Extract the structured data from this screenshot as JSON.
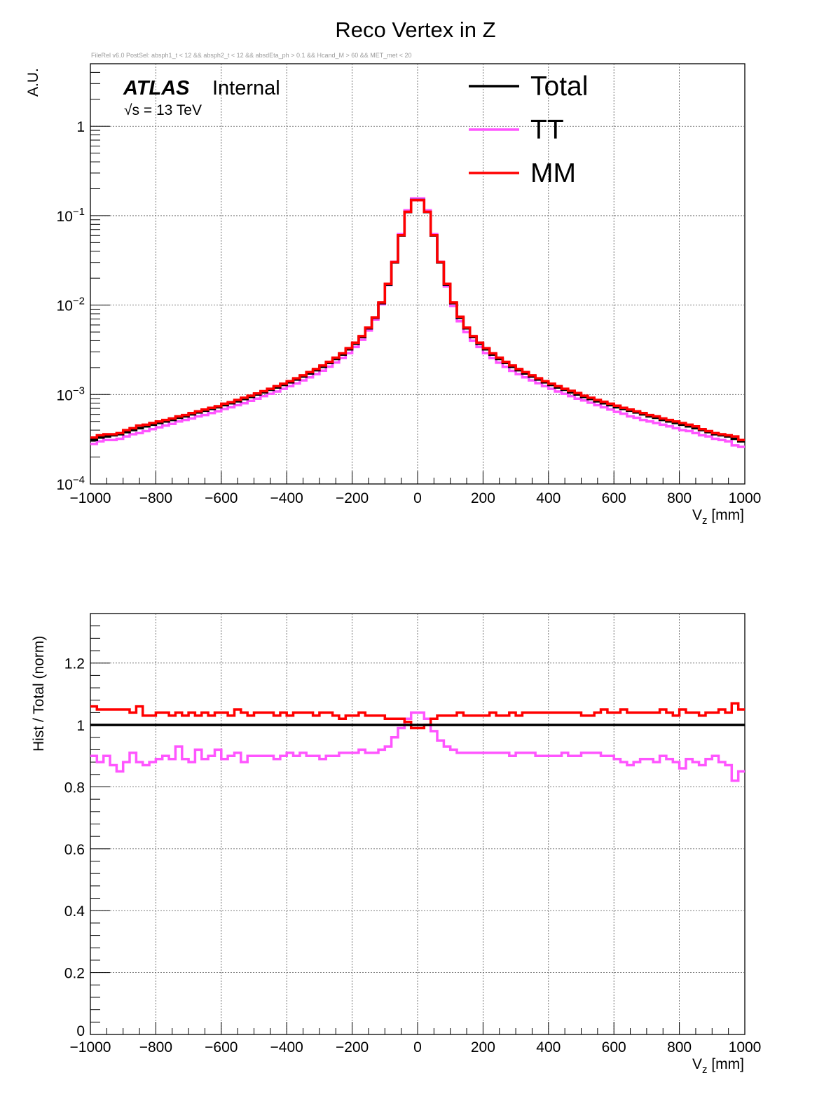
{
  "title": "Reco Vertex in Z",
  "selection_text": "FileRel v6.0 PostSel:  absph1_t < 12 && absph2_t < 12 && absdEta_ph > 0.1 && Hcand_M > 60 && MET_met < 20",
  "atlas_label": {
    "experiment": "ATLAS",
    "status": "Internal",
    "energy_prefix": "√s = 13 TeV"
  },
  "colors": {
    "Total": "#000000",
    "TT": "#ff55ff",
    "MM": "#ff0000"
  },
  "chart_data": [
    {
      "type": "line",
      "subtype": "step-histogram",
      "x": [
        -990,
        -970,
        -950,
        -930,
        -910,
        -890,
        -870,
        -850,
        -830,
        -810,
        -790,
        -770,
        -750,
        -730,
        -710,
        -690,
        -670,
        -650,
        -630,
        -610,
        -590,
        -570,
        -550,
        -530,
        -510,
        -490,
        -470,
        -450,
        -430,
        -410,
        -390,
        -370,
        -350,
        -330,
        -310,
        -290,
        -270,
        -250,
        -230,
        -210,
        -190,
        -170,
        -150,
        -130,
        -110,
        -90,
        -70,
        -50,
        -30,
        -10,
        10,
        30,
        50,
        70,
        90,
        110,
        130,
        150,
        170,
        190,
        210,
        230,
        250,
        270,
        290,
        310,
        330,
        350,
        370,
        390,
        410,
        430,
        450,
        470,
        490,
        510,
        530,
        550,
        570,
        590,
        610,
        630,
        650,
        670,
        690,
        710,
        730,
        750,
        770,
        790,
        810,
        830,
        850,
        870,
        890,
        910,
        930,
        950,
        970,
        990
      ],
      "bin_width": 20,
      "series": [
        {
          "name": "Total",
          "values": [
            0.00031,
            0.00033,
            0.00034,
            0.00035,
            0.00036,
            0.00038,
            0.0004,
            0.00042,
            0.00044,
            0.00046,
            0.00048,
            0.0005,
            0.00052,
            0.00055,
            0.00057,
            0.0006,
            0.00063,
            0.00066,
            0.00069,
            0.00072,
            0.00076,
            0.0008,
            0.00084,
            0.00089,
            0.00094,
            0.001,
            0.00106,
            0.00113,
            0.0012,
            0.00128,
            0.00137,
            0.00147,
            0.00159,
            0.00172,
            0.00187,
            0.00204,
            0.00225,
            0.0025,
            0.0028,
            0.0032,
            0.0037,
            0.0044,
            0.0055,
            0.0072,
            0.0105,
            0.017,
            0.03,
            0.06,
            0.11,
            0.15,
            0.15,
            0.11,
            0.06,
            0.03,
            0.017,
            0.0105,
            0.0072,
            0.0055,
            0.0044,
            0.0037,
            0.0032,
            0.0028,
            0.0025,
            0.00225,
            0.00204,
            0.00187,
            0.00172,
            0.00159,
            0.00147,
            0.00137,
            0.00128,
            0.0012,
            0.00113,
            0.00106,
            0.001,
            0.00094,
            0.00089,
            0.00084,
            0.0008,
            0.00076,
            0.00072,
            0.00069,
            0.00066,
            0.00063,
            0.0006,
            0.00057,
            0.00055,
            0.00052,
            0.0005,
            0.00048,
            0.00046,
            0.00044,
            0.00042,
            0.0004,
            0.00038,
            0.00036,
            0.00035,
            0.00034,
            0.00032,
            0.0003
          ]
        },
        {
          "name": "TT",
          "values": [
            0.00028,
            0.0003,
            0.00031,
            0.00031,
            0.00032,
            0.00034,
            0.00036,
            0.00037,
            0.00039,
            0.00041,
            0.00043,
            0.00045,
            0.00047,
            0.0005,
            0.00052,
            0.00054,
            0.00057,
            0.00059,
            0.00062,
            0.00065,
            0.00069,
            0.00072,
            0.00076,
            0.0008,
            0.00085,
            0.0009,
            0.00096,
            0.00102,
            0.00108,
            0.00116,
            0.00124,
            0.00133,
            0.00144,
            0.00156,
            0.00169,
            0.00185,
            0.00205,
            0.00228,
            0.00256,
            0.0029,
            0.0034,
            0.0041,
            0.0052,
            0.0069,
            0.0102,
            0.0168,
            0.0305,
            0.062,
            0.115,
            0.156,
            0.156,
            0.115,
            0.062,
            0.0305,
            0.0162,
            0.0098,
            0.0066,
            0.005,
            0.004,
            0.0034,
            0.0029,
            0.00255,
            0.00227,
            0.00204,
            0.00184,
            0.00169,
            0.00156,
            0.00144,
            0.00134,
            0.00124,
            0.00116,
            0.00108,
            0.00102,
            0.00096,
            0.0009,
            0.00086,
            0.00081,
            0.00076,
            0.00072,
            0.00068,
            0.00064,
            0.00061,
            0.00057,
            0.00055,
            0.00052,
            0.0005,
            0.00048,
            0.00046,
            0.00044,
            0.00042,
            0.0004,
            0.00039,
            0.00037,
            0.00035,
            0.00034,
            0.00032,
            0.00031,
            0.0003,
            0.00027,
            0.00026
          ]
        },
        {
          "name": "MM",
          "values": [
            0.00033,
            0.00035,
            0.00036,
            0.00036,
            0.00037,
            0.0004,
            0.00042,
            0.00045,
            0.00046,
            0.00048,
            0.0005,
            0.00052,
            0.00054,
            0.00057,
            0.00059,
            0.00062,
            0.00065,
            0.00068,
            0.00071,
            0.00074,
            0.00079,
            0.00082,
            0.00087,
            0.00092,
            0.00097,
            0.00103,
            0.00109,
            0.00116,
            0.00124,
            0.00132,
            0.00141,
            0.00152,
            0.00164,
            0.00178,
            0.00193,
            0.00211,
            0.00232,
            0.00258,
            0.00289,
            0.0033,
            0.0038,
            0.0045,
            0.0056,
            0.0073,
            0.0107,
            0.0173,
            0.0303,
            0.0605,
            0.1105,
            0.149,
            0.149,
            0.1105,
            0.0605,
            0.0303,
            0.0173,
            0.0107,
            0.0074,
            0.0056,
            0.0045,
            0.0038,
            0.0033,
            0.00289,
            0.00258,
            0.00232,
            0.00211,
            0.00193,
            0.00178,
            0.00164,
            0.00152,
            0.00141,
            0.00132,
            0.00124,
            0.00116,
            0.0011,
            0.00104,
            0.00097,
            0.00092,
            0.00087,
            0.00083,
            0.00079,
            0.00075,
            0.00071,
            0.00068,
            0.00065,
            0.00062,
            0.00059,
            0.00057,
            0.00054,
            0.00052,
            0.0005,
            0.00048,
            0.00046,
            0.00044,
            0.00041,
            0.00039,
            0.00037,
            0.00036,
            0.00035,
            0.00034,
            0.00031
          ]
        }
      ],
      "xlabel": "V_z [mm]",
      "ylabel": "A.U.",
      "xlim": [
        -1000,
        1000
      ],
      "ylim": [
        0.0001,
        5
      ],
      "yscale": "log",
      "x_ticks": [
        "−1000",
        "−800",
        "−600",
        "−400",
        "−200",
        "0",
        "200",
        "400",
        "600",
        "800",
        "1000"
      ],
      "y_ticks": [
        "10^-4",
        "10^-3",
        "10^-2",
        "10^-1",
        "1"
      ],
      "grid": true,
      "legend_position": "top-right"
    },
    {
      "type": "line",
      "subtype": "step-histogram",
      "x": [
        -990,
        -970,
        -950,
        -930,
        -910,
        -890,
        -870,
        -850,
        -830,
        -810,
        -790,
        -770,
        -750,
        -730,
        -710,
        -690,
        -670,
        -650,
        -630,
        -610,
        -590,
        -570,
        -550,
        -530,
        -510,
        -490,
        -470,
        -450,
        -430,
        -410,
        -390,
        -370,
        -350,
        -330,
        -310,
        -290,
        -270,
        -250,
        -230,
        -210,
        -190,
        -170,
        -150,
        -130,
        -110,
        -90,
        -70,
        -50,
        -30,
        -10,
        10,
        30,
        50,
        70,
        90,
        110,
        130,
        150,
        170,
        190,
        210,
        230,
        250,
        270,
        290,
        310,
        330,
        350,
        370,
        390,
        410,
        430,
        450,
        470,
        490,
        510,
        530,
        550,
        570,
        590,
        610,
        630,
        650,
        670,
        690,
        710,
        730,
        750,
        770,
        790,
        810,
        830,
        850,
        870,
        890,
        910,
        930,
        950,
        970,
        990
      ],
      "bin_width": 20,
      "series": [
        {
          "name": "Total",
          "values": [
            1,
            1,
            1,
            1,
            1,
            1,
            1,
            1,
            1,
            1,
            1,
            1,
            1,
            1,
            1,
            1,
            1,
            1,
            1,
            1,
            1,
            1,
            1,
            1,
            1,
            1,
            1,
            1,
            1,
            1,
            1,
            1,
            1,
            1,
            1,
            1,
            1,
            1,
            1,
            1,
            1,
            1,
            1,
            1,
            1,
            1,
            1,
            1,
            1,
            1,
            1,
            1,
            1,
            1,
            1,
            1,
            1,
            1,
            1,
            1,
            1,
            1,
            1,
            1,
            1,
            1,
            1,
            1,
            1,
            1,
            1,
            1,
            1,
            1,
            1,
            1,
            1,
            1,
            1,
            1,
            1,
            1,
            1,
            1,
            1,
            1,
            1,
            1,
            1,
            1,
            1,
            1,
            1,
            1,
            1,
            1,
            1,
            1,
            1,
            1
          ]
        },
        {
          "name": "TT",
          "values": [
            0.9,
            0.88,
            0.9,
            0.87,
            0.85,
            0.88,
            0.91,
            0.88,
            0.87,
            0.88,
            0.89,
            0.9,
            0.89,
            0.93,
            0.89,
            0.88,
            0.92,
            0.89,
            0.9,
            0.92,
            0.89,
            0.9,
            0.91,
            0.88,
            0.9,
            0.9,
            0.9,
            0.9,
            0.89,
            0.9,
            0.91,
            0.9,
            0.91,
            0.9,
            0.9,
            0.89,
            0.9,
            0.9,
            0.91,
            0.91,
            0.91,
            0.92,
            0.91,
            0.91,
            0.92,
            0.93,
            0.96,
            0.99,
            1.02,
            1.04,
            1.04,
            1.02,
            0.98,
            0.95,
            0.93,
            0.92,
            0.91,
            0.91,
            0.91,
            0.91,
            0.91,
            0.91,
            0.91,
            0.91,
            0.9,
            0.91,
            0.91,
            0.91,
            0.9,
            0.9,
            0.9,
            0.9,
            0.91,
            0.9,
            0.9,
            0.91,
            0.91,
            0.91,
            0.9,
            0.9,
            0.89,
            0.88,
            0.87,
            0.88,
            0.89,
            0.89,
            0.88,
            0.9,
            0.89,
            0.88,
            0.86,
            0.89,
            0.88,
            0.87,
            0.89,
            0.9,
            0.88,
            0.87,
            0.82,
            0.85
          ]
        },
        {
          "name": "MM",
          "values": [
            1.06,
            1.05,
            1.05,
            1.05,
            1.05,
            1.05,
            1.04,
            1.06,
            1.03,
            1.03,
            1.04,
            1.04,
            1.03,
            1.04,
            1.03,
            1.04,
            1.03,
            1.04,
            1.03,
            1.04,
            1.04,
            1.03,
            1.05,
            1.04,
            1.03,
            1.04,
            1.04,
            1.04,
            1.03,
            1.04,
            1.03,
            1.04,
            1.04,
            1.04,
            1.03,
            1.04,
            1.04,
            1.03,
            1.02,
            1.03,
            1.03,
            1.04,
            1.03,
            1.03,
            1.03,
            1.02,
            1.02,
            1.02,
            1.01,
            0.99,
            0.99,
            1.0,
            1.02,
            1.03,
            1.03,
            1.03,
            1.04,
            1.03,
            1.03,
            1.03,
            1.03,
            1.04,
            1.03,
            1.03,
            1.04,
            1.03,
            1.04,
            1.04,
            1.04,
            1.04,
            1.04,
            1.04,
            1.04,
            1.04,
            1.04,
            1.03,
            1.03,
            1.04,
            1.05,
            1.04,
            1.04,
            1.05,
            1.04,
            1.04,
            1.04,
            1.04,
            1.04,
            1.05,
            1.04,
            1.03,
            1.05,
            1.04,
            1.04,
            1.03,
            1.04,
            1.04,
            1.05,
            1.04,
            1.07,
            1.05
          ]
        }
      ],
      "xlabel": "V_z [mm]",
      "ylabel": "Hist / Total (norm)",
      "xlim": [
        -1000,
        1000
      ],
      "ylim": [
        0,
        1.36
      ],
      "yscale": "linear",
      "x_ticks": [
        "−1000",
        "−800",
        "−600",
        "−400",
        "−200",
        "0",
        "200",
        "400",
        "600",
        "800",
        "1000"
      ],
      "y_ticks": [
        "0",
        "0.2",
        "0.4",
        "0.6",
        "0.8",
        "1",
        "1.2"
      ],
      "grid": true
    }
  ]
}
